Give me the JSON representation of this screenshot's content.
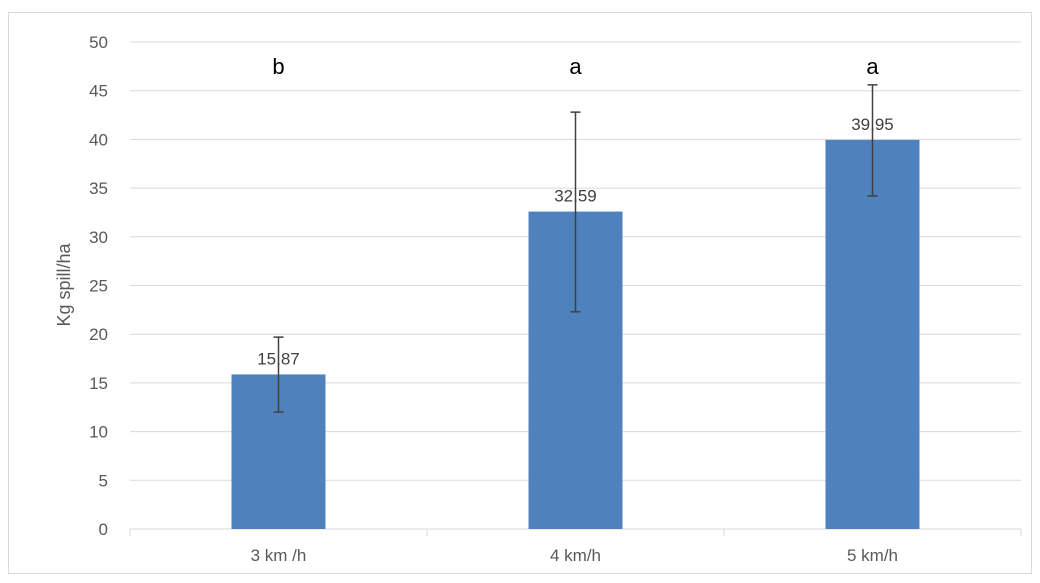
{
  "chart_data": {
    "type": "bar",
    "title": "",
    "xlabel": "",
    "ylabel": "Kg spill/ha",
    "ylim": [
      0,
      50
    ],
    "ytick_step": 5,
    "yticks": [
      "0",
      "5",
      "10",
      "15",
      "20",
      "25",
      "30",
      "35",
      "40",
      "45",
      "50"
    ],
    "grid": true,
    "legend": "none",
    "categories": [
      "3 km /h",
      "4 km/h",
      "5 km/h"
    ],
    "values": [
      15.87,
      32.59,
      39.95
    ],
    "value_labels": [
      "15,87",
      "32,59",
      "39,95"
    ],
    "error_low": [
      12.0,
      22.3,
      34.2
    ],
    "error_high": [
      19.7,
      42.8,
      45.6
    ],
    "significance_letters": [
      "b",
      "a",
      "a"
    ],
    "colors": {
      "bar": "#4f81bd",
      "grid": "#d9d9d9",
      "error_bar": "#404040"
    }
  }
}
